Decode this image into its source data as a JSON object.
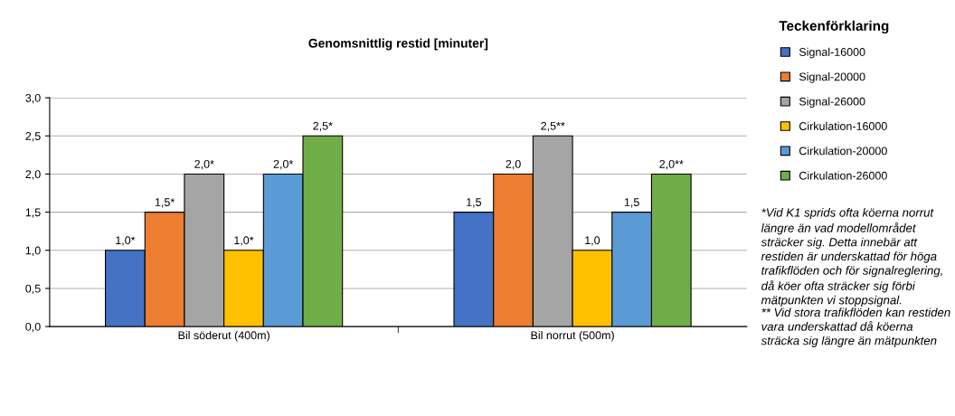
{
  "chart_data": {
    "type": "bar",
    "title": "Genomsnittlig restid [minuter]",
    "legend_title": "Teckenförklaring",
    "categories": [
      "Bil söderut (400m)",
      "Bil norrut (500m)"
    ],
    "series": [
      {
        "name": "Signal-16000",
        "color": "#4472c4",
        "values": [
          1.0,
          1.5
        ],
        "value_labels": [
          "1,0*",
          "1,5"
        ]
      },
      {
        "name": "Signal-20000",
        "color": "#ed7d31",
        "values": [
          1.5,
          2.0
        ],
        "value_labels": [
          "1,5*",
          "2,0"
        ]
      },
      {
        "name": "Signal-26000",
        "color": "#a5a5a5",
        "values": [
          2.0,
          2.5
        ],
        "value_labels": [
          "2,0*",
          "2,5**"
        ]
      },
      {
        "name": "Cirkulation-16000",
        "color": "#ffc000",
        "values": [
          1.0,
          1.0
        ],
        "value_labels": [
          "1,0*",
          "1,0"
        ]
      },
      {
        "name": "Cirkulation-20000",
        "color": "#5b9bd5",
        "values": [
          2.0,
          1.5
        ],
        "value_labels": [
          "2,0*",
          "1,5"
        ]
      },
      {
        "name": "Cirkulation-26000",
        "color": "#70ad47",
        "values": [
          2.5,
          2.0
        ],
        "value_labels": [
          "2,5*",
          "2,0**"
        ]
      }
    ],
    "ylim": [
      0,
      3
    ],
    "yticks": [
      {
        "value": 0,
        "label": "0,0"
      },
      {
        "value": 0.5,
        "label": "0,5"
      },
      {
        "value": 1,
        "label": "1,0"
      },
      {
        "value": 1.5,
        "label": "1,5"
      },
      {
        "value": 2,
        "label": "2,0"
      },
      {
        "value": 2.5,
        "label": "2,5"
      },
      {
        "value": 3,
        "label": "3,0"
      }
    ],
    "grid": "y",
    "legend": "right",
    "annotations": [
      "*Vid K1 sprids ofta köerna norrut längre än vad modellområdet sträcker sig. Detta innebär att restiden är underskattad för höga trafikflöden och för signalreglering, då köer ofta sträcker sig förbi mätpunkten vi stoppsignal.",
      "** Vid stora trafikflöden kan restiden vara underskattad då köerna sträcka sig längre än mätpunkten"
    ]
  }
}
